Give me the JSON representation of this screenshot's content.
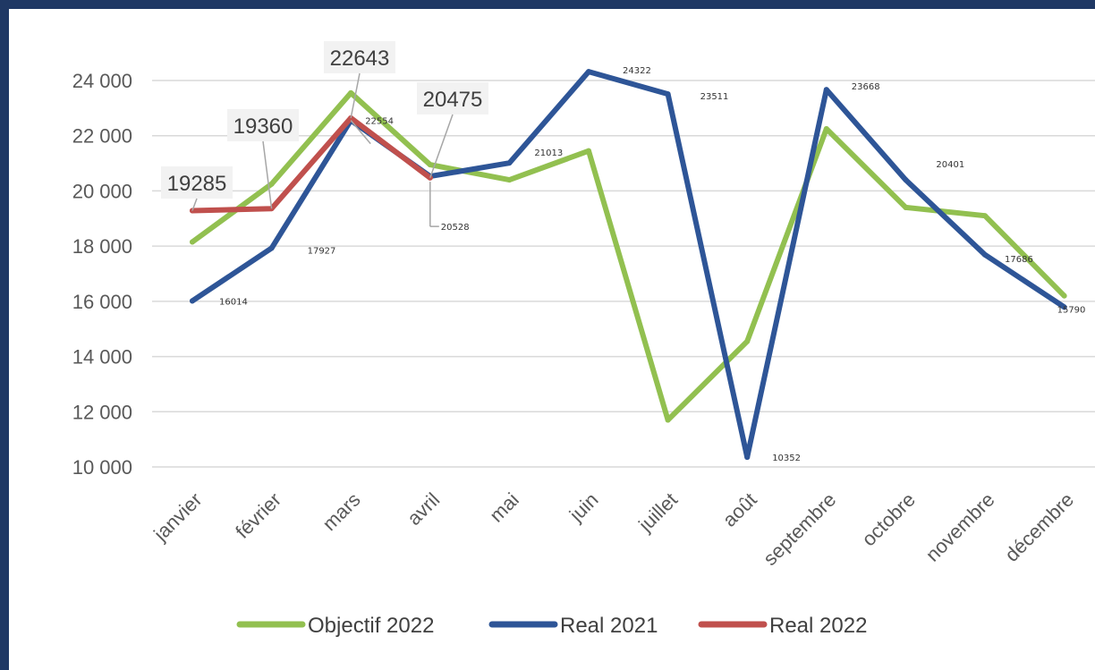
{
  "chart_data": {
    "type": "line",
    "categories": [
      "janvier",
      "février",
      "mars",
      "avril",
      "mai",
      "juin",
      "juillet",
      "août",
      "septembre",
      "octobre",
      "novembre",
      "décembre"
    ],
    "ylim": [
      10000,
      24000
    ],
    "yticks": [
      "10 000",
      "12 000",
      "14 000",
      "16 000",
      "18 000",
      "20 000",
      "22 000",
      "24 000"
    ],
    "ytick_values": [
      10000,
      12000,
      14000,
      16000,
      18000,
      20000,
      22000,
      24000
    ],
    "grid": true,
    "legend_position": "bottom",
    "series": [
      {
        "name": "Objectif 2022",
        "color": "#92c050",
        "values": [
          18150,
          20250,
          23550,
          20950,
          20400,
          21450,
          11700,
          14550,
          22250,
          19400,
          19100,
          16200
        ],
        "labels": []
      },
      {
        "name": "Real 2021",
        "color": "#2e5597",
        "values": [
          16014,
          17927,
          22554,
          20528,
          21013,
          24322,
          23511,
          10352,
          23668,
          20401,
          17686,
          15790
        ],
        "labels": [
          "16014",
          "17927",
          "22554",
          "20528",
          "21013",
          "24322",
          "23511",
          "10352",
          "23668",
          "20401",
          "17686",
          "15790"
        ]
      },
      {
        "name": "Real 2022",
        "color": "#c0504d",
        "values": [
          19285,
          19360,
          22643,
          20475,
          null,
          null,
          null,
          null,
          null,
          null,
          null,
          null
        ],
        "labels": [
          "19285",
          "19360",
          "22643",
          "20475"
        ]
      }
    ]
  }
}
